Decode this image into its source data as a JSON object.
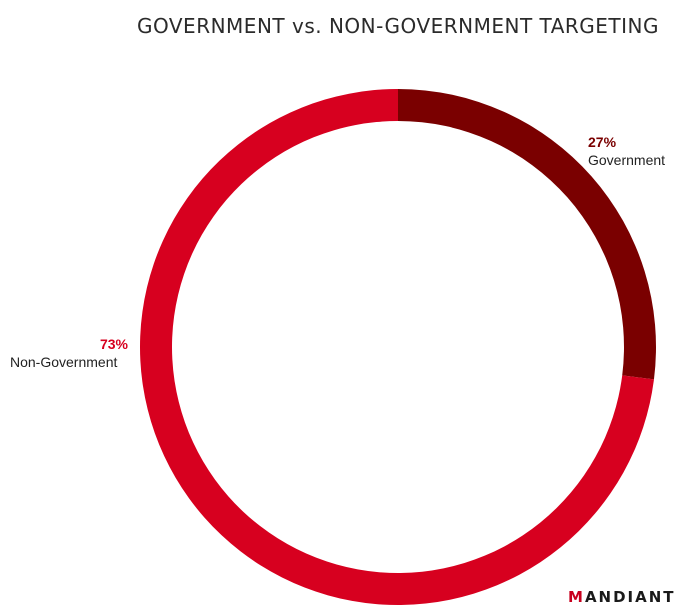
{
  "chart_data": {
    "type": "pie",
    "title": "GOVERNMENT vs. NON-GOVERNMENT TARGETING",
    "slices": [
      {
        "label": "Government",
        "value": 27,
        "value_label": "27%",
        "color": "#7a0000"
      },
      {
        "label": "Non-Government",
        "value": 73,
        "value_label": "73%",
        "color": "#d7001f"
      }
    ],
    "start_angle": "12 o'clock",
    "direction": "clockwise",
    "donut": true
  },
  "brand": {
    "text": "MANDIANT",
    "accent_color": "#c8001e"
  }
}
